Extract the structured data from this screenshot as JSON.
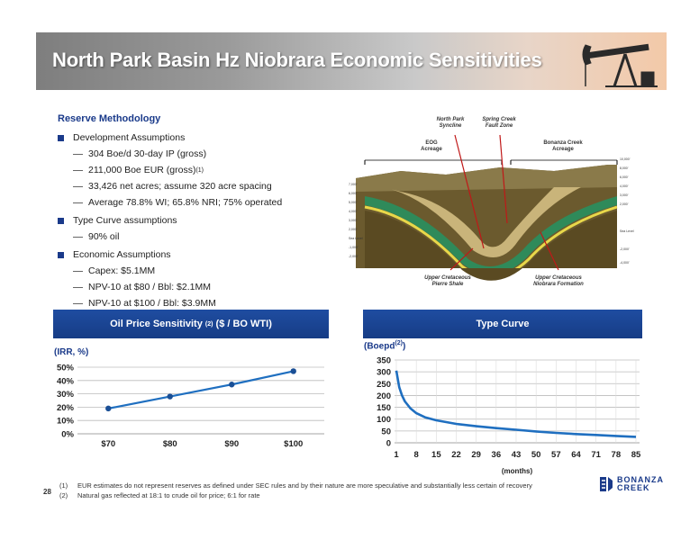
{
  "title": "North Park Basin Hz Niobrara Economic Sensitivities",
  "reserve": {
    "heading": "Reserve Methodology",
    "dev": "Development Assumptions",
    "dev_items": [
      "304 Boe/d 30-day IP (gross)",
      "211,000 Boe EUR (gross)",
      "33,426 net acres; assume 320 acre spacing",
      "Average 78.8% WI; 65.8% NRI; 75% operated"
    ],
    "eur_sup": "(1)",
    "tc": "Type Curve assumptions",
    "tc_items": [
      "90% oil"
    ],
    "econ": "Economic Assumptions",
    "econ_items": [
      "Capex: $5.1MM",
      "NPV-10 at $80 / Bbl: $2.1MM",
      "NPV-10 at $100 / Bbl: $3.9MM"
    ]
  },
  "diagram": {
    "north_park": "North Park",
    "syncline": "Syncline",
    "spring_creek": "Spring Creek",
    "fault_zone": "Fault Zone",
    "eog": "EOG",
    "eog_acreage": "Acreage",
    "bonanza": "Bonanza Creek",
    "bonanza_acreage": "Acreage",
    "upper1": "Upper Cretaceous",
    "pierre": "Pierre Shale",
    "upper2": "Upper Cretaceous",
    "niobrara": "Niobrara Formation"
  },
  "oil_panel": {
    "header": "Oil Price Sensitivity",
    "header_sup": "(2)",
    "header_tail": "($ / BO WTI)",
    "axis_title": "(IRR, %)"
  },
  "type_panel": {
    "header": "Type Curve",
    "axis_title": "(Boepd",
    "axis_sup": "(2)",
    "axis_close": ")",
    "xlabel": "(months)"
  },
  "chart_data": [
    {
      "type": "line",
      "categories": [
        "$70",
        "$80",
        "$90",
        "$100"
      ],
      "values": [
        19,
        28,
        37,
        47
      ],
      "ylabel": "(IRR, %)",
      "ylim": [
        0,
        50
      ],
      "yticks": [
        "0%",
        "10%",
        "20%",
        "30%",
        "40%",
        "50%"
      ],
      "color": "#1f6fc0",
      "grid": true
    },
    {
      "type": "line",
      "x_ticks": [
        "1",
        "8",
        "15",
        "22",
        "29",
        "36",
        "43",
        "50",
        "57",
        "64",
        "71",
        "78",
        "85"
      ],
      "x": [
        1,
        2,
        3,
        4,
        6,
        8,
        11,
        15,
        22,
        29,
        36,
        43,
        50,
        57,
        64,
        71,
        78,
        85
      ],
      "values": [
        305,
        235,
        200,
        175,
        145,
        125,
        108,
        95,
        80,
        70,
        62,
        55,
        48,
        42,
        37,
        33,
        29,
        25
      ],
      "ylabel": "(Boepd(2))",
      "xlabel": "(months)",
      "ylim": [
        0,
        350
      ],
      "yticks": [
        "0",
        "50",
        "100",
        "150",
        "200",
        "250",
        "300",
        "350"
      ],
      "color": "#1f6fc0",
      "grid": true
    }
  ],
  "footnotes": [
    {
      "n": "(1)",
      "text": "EUR estimates do not represent reserves as defined under SEC rules and by their nature are more speculative and substantially less certain of recovery"
    },
    {
      "n": "(2)",
      "text": "Natural gas reflected at 18:1 to crude oil for price; 6:1 for rate"
    }
  ],
  "page_number": "28",
  "logo": {
    "line1": "BONANZA",
    "line2": "CREEK"
  }
}
